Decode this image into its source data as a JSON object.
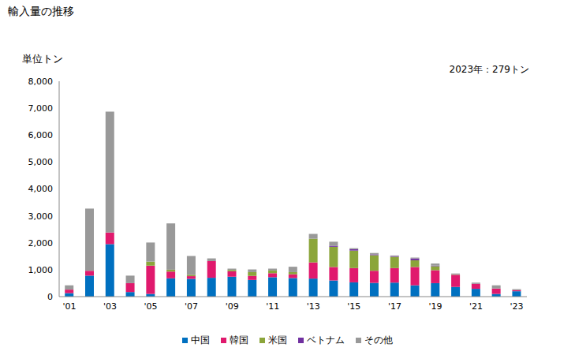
{
  "chart_data": {
    "type": "bar",
    "title": "輸入量の推移",
    "y_label": "単位トン",
    "annotation": "2023年：279トン",
    "stacked": true,
    "grid": false,
    "legend": "bottom",
    "categories": [
      "'01",
      null,
      "'03",
      null,
      "'05",
      null,
      "'07",
      null,
      "'09",
      null,
      "'11",
      null,
      "'13",
      null,
      "'15",
      null,
      "'17",
      null,
      "'19",
      null,
      "'21",
      null,
      "'23"
    ],
    "ylim": [
      0,
      8000
    ],
    "yticks": [
      0,
      {
        "value": 1000,
        "label": "1,000"
      },
      {
        "value": 2000,
        "label": "2,000"
      },
      {
        "value": 3000,
        "label": "3,000"
      },
      {
        "value": 4000,
        "label": "4,000"
      },
      {
        "value": 5000,
        "label": "5,000"
      },
      {
        "value": 6000,
        "label": "6,000"
      },
      {
        "value": 7000,
        "label": "7,000"
      },
      {
        "value": 8000,
        "label": "8,000"
      }
    ],
    "series": [
      {
        "name": "中国",
        "color": "#0070c0",
        "values": [
          130,
          780,
          1950,
          170,
          100,
          680,
          660,
          700,
          740,
          620,
          720,
          690,
          670,
          600,
          530,
          510,
          520,
          420,
          500,
          360,
          290,
          100,
          200
        ]
      },
      {
        "name": "韓国",
        "color": "#e0196d",
        "values": [
          130,
          180,
          430,
          330,
          1050,
          250,
          100,
          620,
          200,
          150,
          150,
          140,
          600,
          500,
          530,
          450,
          540,
          680,
          480,
          450,
          180,
          200,
          40
        ]
      },
      {
        "name": "米国",
        "color": "#8ba53a",
        "values": [
          0,
          0,
          0,
          0,
          150,
          70,
          50,
          0,
          50,
          140,
          100,
          80,
          880,
          750,
          650,
          580,
          420,
          250,
          150,
          20,
          10,
          0,
          0
        ]
      },
      {
        "name": "ベトナム",
        "color": "#7030a0",
        "values": [
          0,
          0,
          0,
          0,
          0,
          0,
          0,
          0,
          0,
          0,
          0,
          0,
          0,
          40,
          50,
          30,
          30,
          70,
          20,
          10,
          10,
          0,
          0
        ]
      },
      {
        "name": "その他",
        "color": "#999999",
        "values": [
          160,
          2310,
          4490,
          280,
          710,
          1720,
          700,
          100,
          50,
          100,
          70,
          200,
          180,
          150,
          40,
          50,
          20,
          30,
          80,
          20,
          30,
          120,
          39
        ]
      }
    ]
  }
}
